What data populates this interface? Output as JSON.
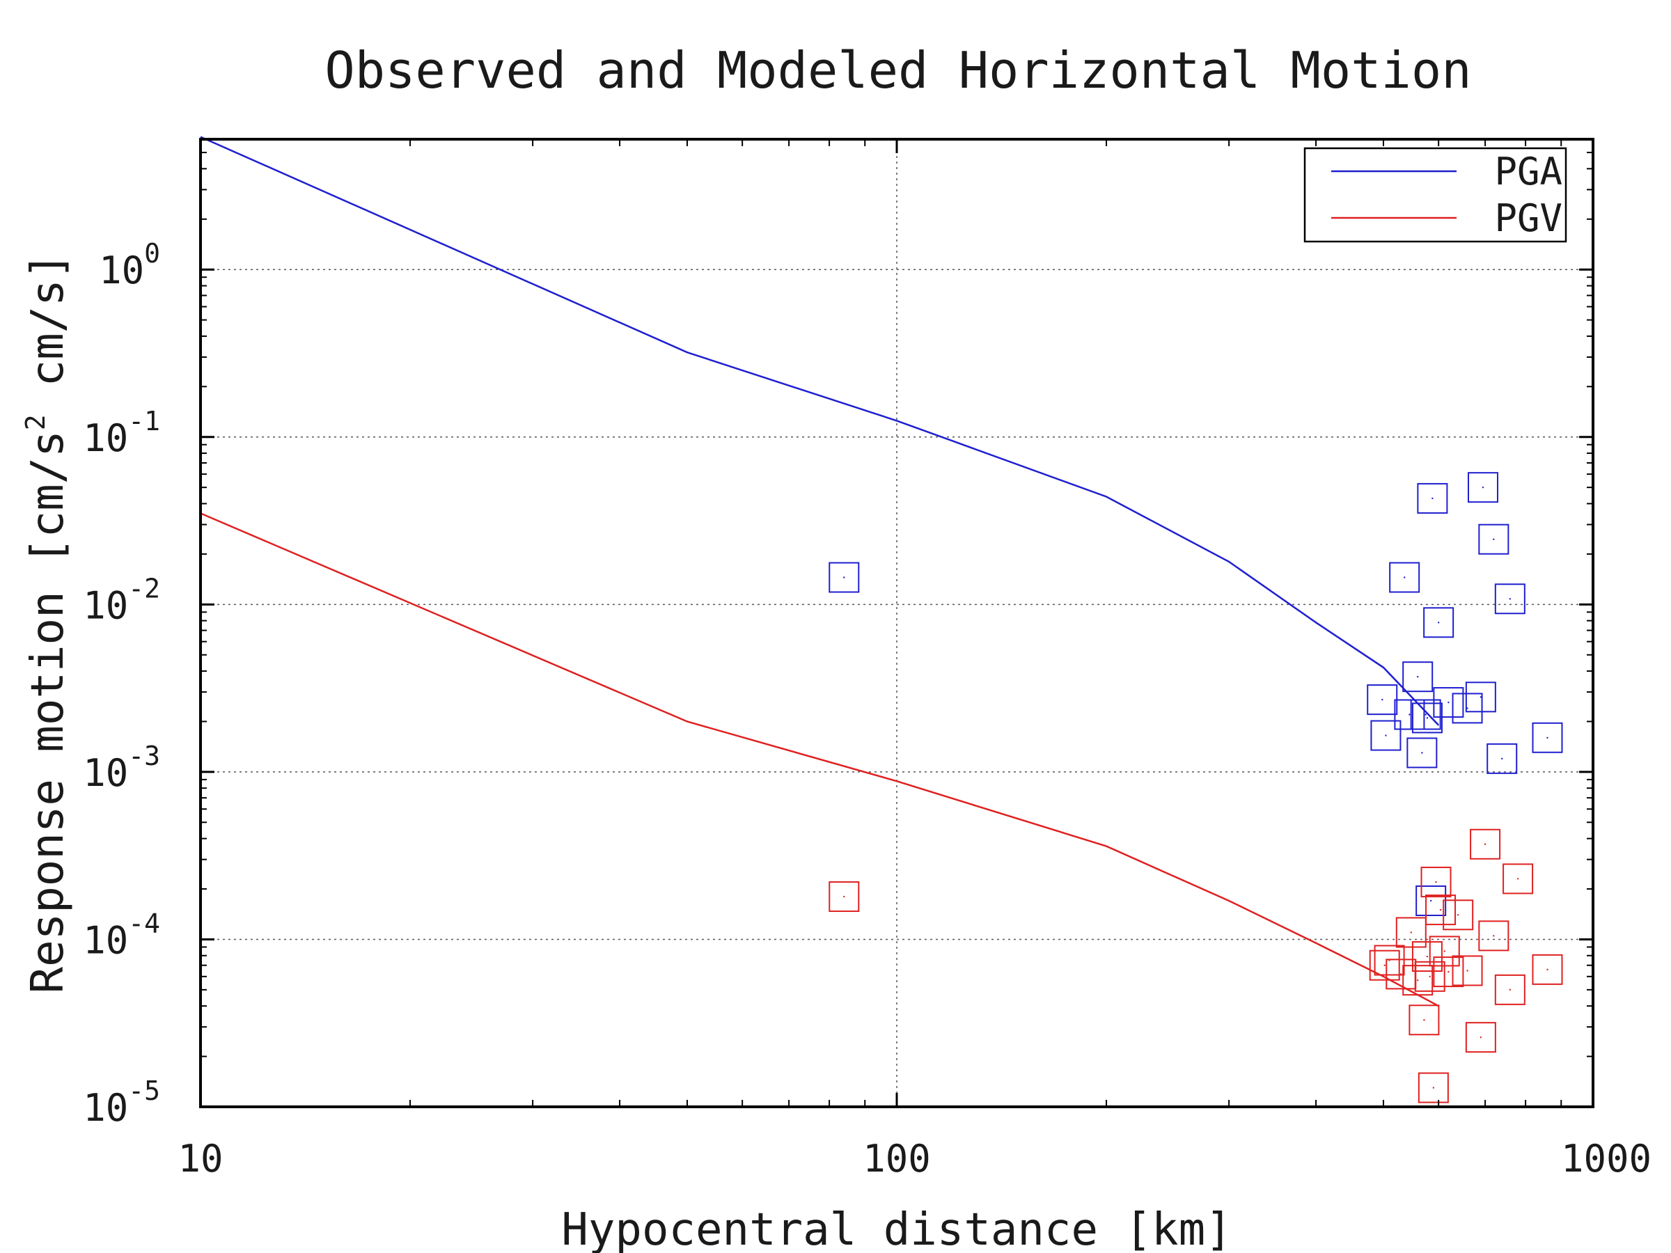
{
  "chart_data": {
    "type": "scatter",
    "title": "Observed and Modeled Horizontal Motion",
    "xlabel": "Hypocentral distance [km]",
    "ylabel": {
      "prefix": "Response motion",
      "unit1_base": "[cm/s",
      "unit1_exp": "2",
      "unit2": "cm/s]"
    },
    "xscale": "log",
    "yscale": "log",
    "xlim": [
      10,
      1000
    ],
    "ylim": [
      1e-05,
      6
    ],
    "grid": true,
    "legend_position": "top-right",
    "x_ticks": [
      {
        "value": 10,
        "label": "10"
      },
      {
        "value": 100,
        "label": "100"
      },
      {
        "value": 1000,
        "label": "1000"
      }
    ],
    "y_ticks": [
      {
        "value": 1,
        "base": "10",
        "exp": "0"
      },
      {
        "value": 0.1,
        "base": "10",
        "exp": "-1"
      },
      {
        "value": 0.01,
        "base": "10",
        "exp": "-2"
      },
      {
        "value": 0.001,
        "base": "10",
        "exp": "-3"
      },
      {
        "value": 0.0001,
        "base": "10",
        "exp": "-4"
      },
      {
        "value": 1e-05,
        "base": "10",
        "exp": "-5"
      }
    ],
    "series": [
      {
        "name": "PGA",
        "color": "#1f1fd0",
        "model_x": [
          10,
          50,
          100,
          120,
          200,
          300,
          400,
          500,
          600
        ],
        "model_y": [
          6.2,
          0.32,
          0.125,
          0.095,
          0.044,
          0.018,
          0.0078,
          0.0042,
          0.0019
        ],
        "observed_x": [
          84,
          498,
          504,
          536,
          545,
          560,
          568,
          575,
          578,
          585,
          588,
          600,
          620,
          660,
          690,
          695,
          720,
          740,
          760,
          860
        ],
        "observed_y": [
          0.0145,
          0.0027,
          0.00165,
          0.0145,
          0.0022,
          0.0037,
          0.0013,
          0.0022,
          0.0021,
          0.00017,
          0.043,
          0.0078,
          0.0026,
          0.0024,
          0.0028,
          0.05,
          0.0245,
          0.0012,
          0.0108,
          0.0016
        ]
      },
      {
        "name": "PGV",
        "color": "#e02020",
        "model_x": [
          10,
          50,
          100,
          200,
          300,
          400,
          500,
          600
        ],
        "model_y": [
          0.035,
          0.002,
          0.00088,
          0.00036,
          0.00017,
          9.5e-05,
          6e-05,
          4e-05
        ],
        "observed_x": [
          84,
          502,
          510,
          530,
          548,
          560,
          572,
          578,
          583,
          590,
          595,
          604,
          612,
          620,
          640,
          660,
          690,
          700,
          720,
          760,
          780,
          860
        ],
        "observed_y": [
          0.00018,
          7e-05,
          7.5e-05,
          6.2e-05,
          0.00011,
          5.7e-05,
          3.3e-05,
          7.9e-05,
          6e-05,
          1.3e-05,
          0.00022,
          0.00015,
          8.5e-05,
          6.4e-05,
          0.00014,
          6.5e-05,
          2.6e-05,
          0.00037,
          0.000105,
          5e-05,
          0.00023,
          6.6e-05
        ]
      }
    ]
  }
}
